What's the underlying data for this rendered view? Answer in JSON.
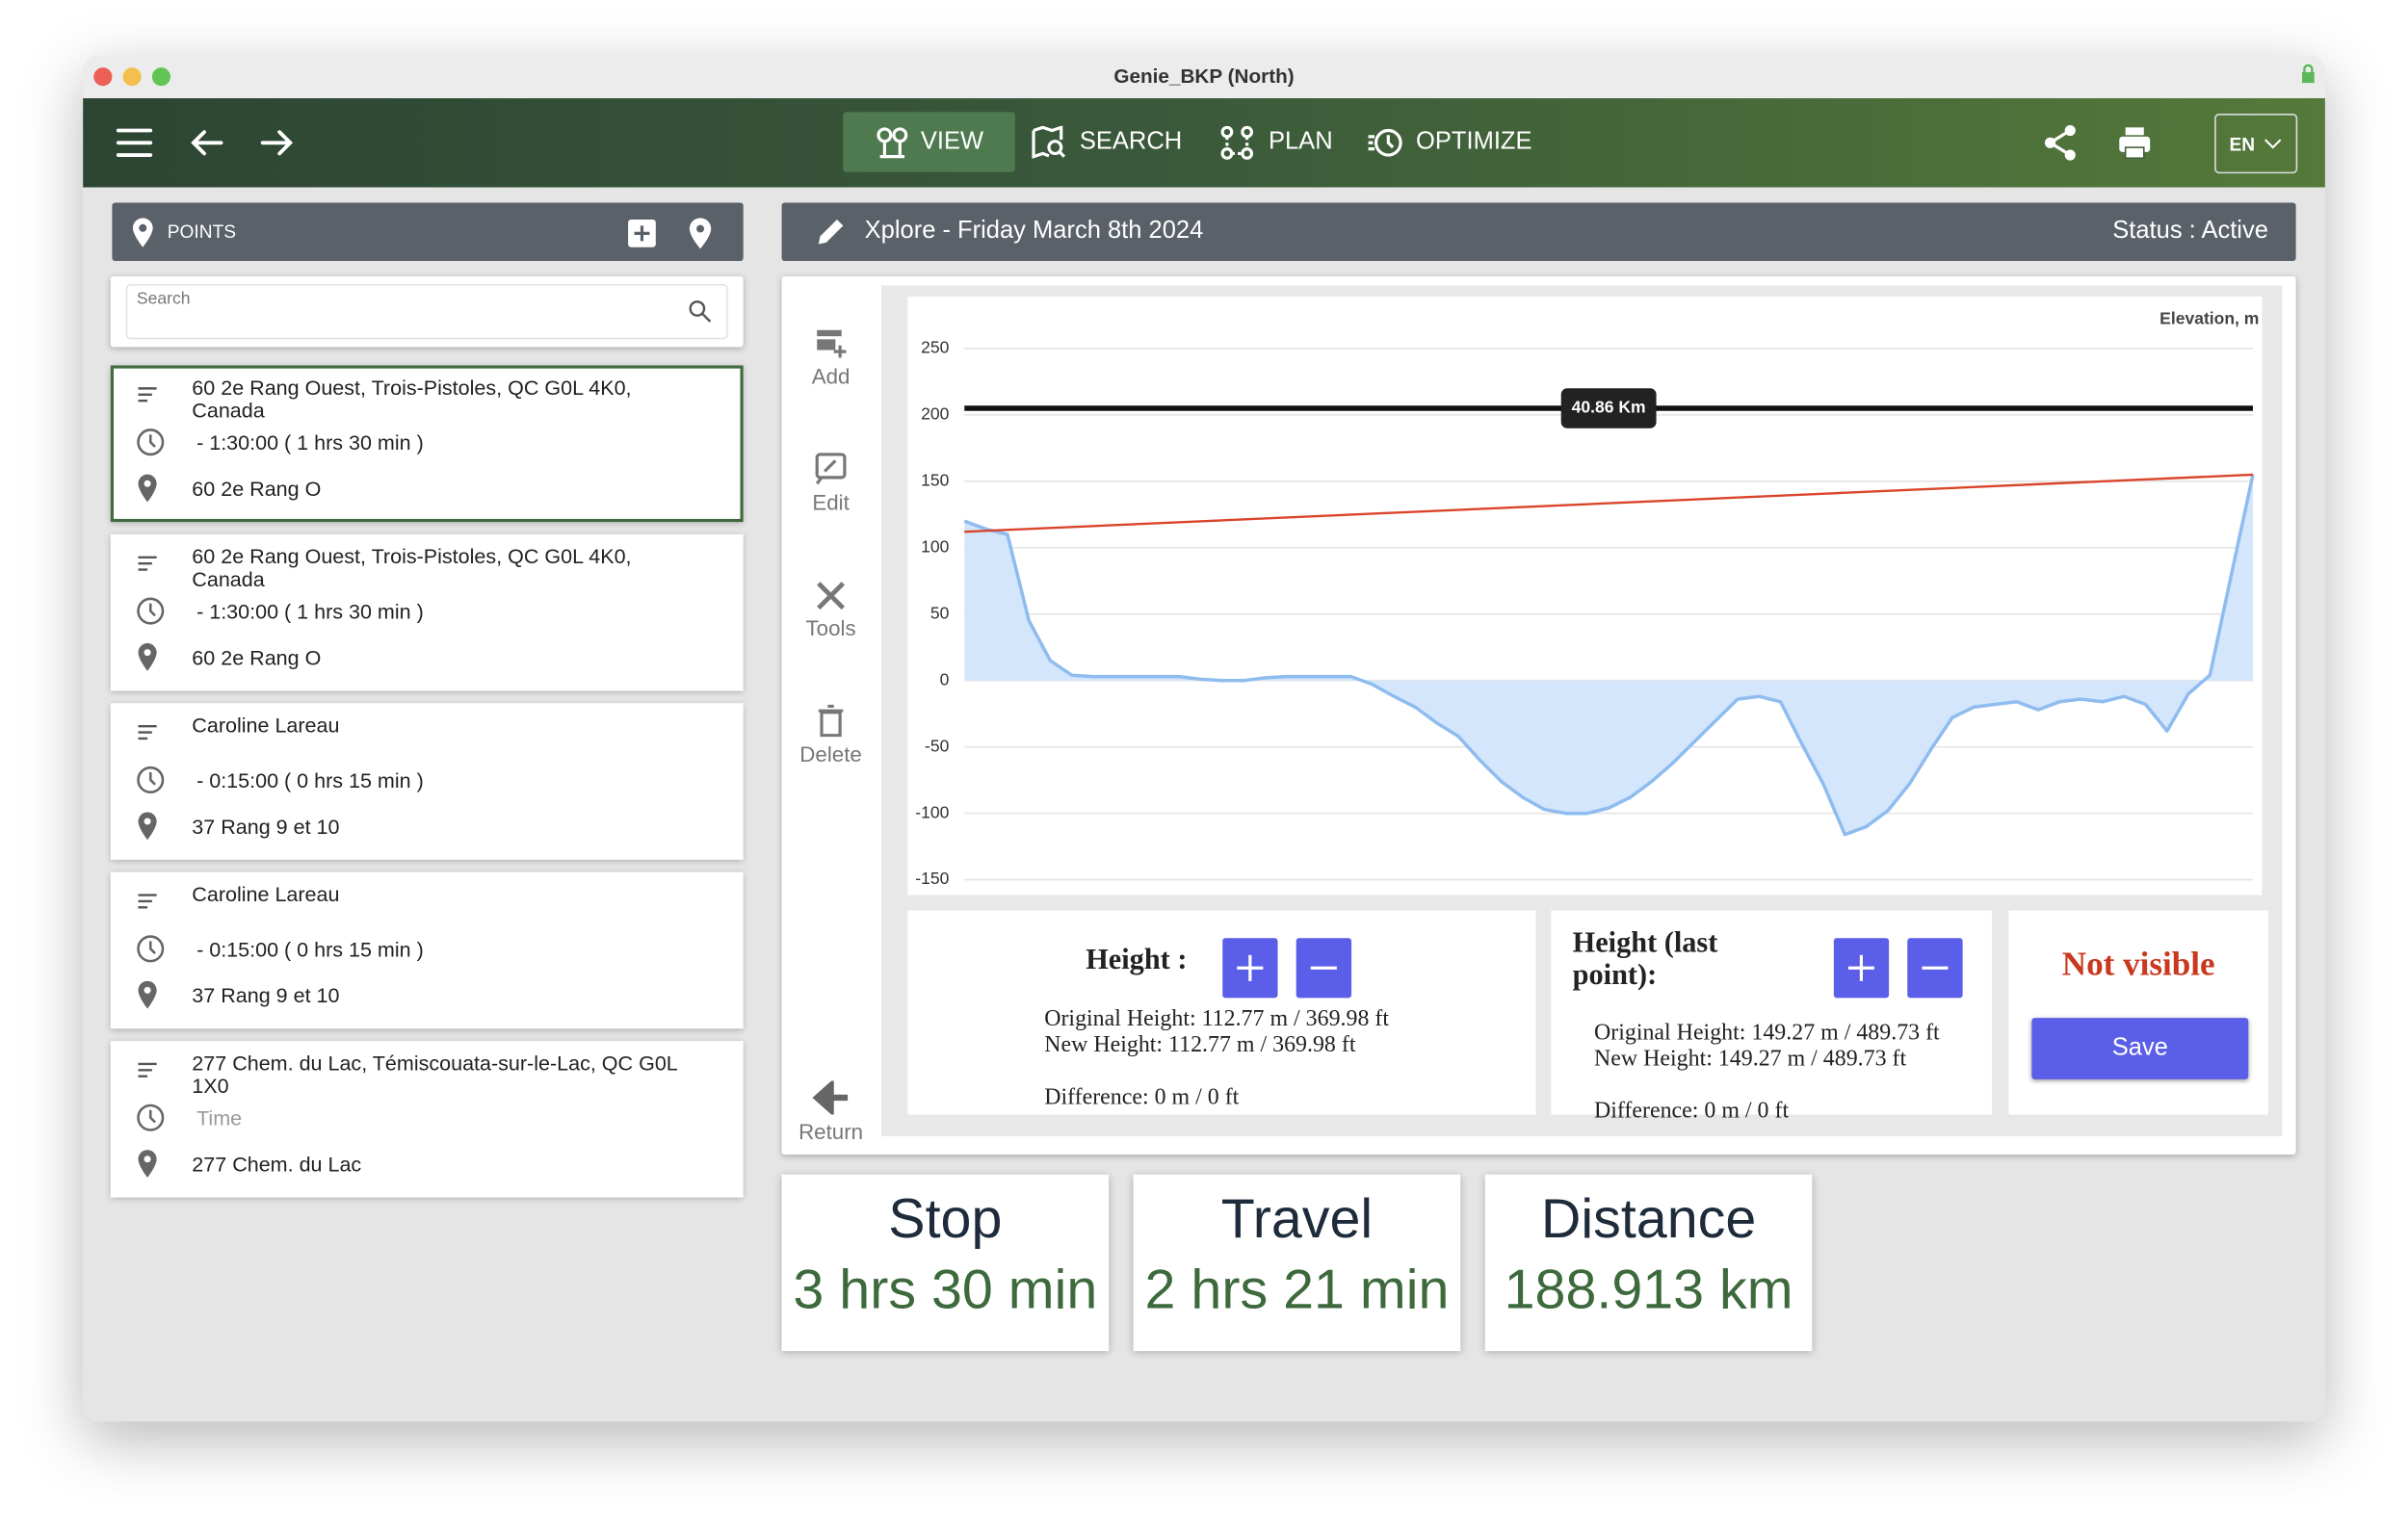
{
  "window_title": "Genie_BKP (North)",
  "toolbar": {
    "nav": [
      "VIEW",
      "SEARCH",
      "PLAN",
      "OPTIMIZE"
    ],
    "language": "EN"
  },
  "points_panel": {
    "title": "POINTS",
    "search_placeholder": "Search",
    "items": [
      {
        "title": "60 2e Rang Ouest, Trois-Pistoles, QC G0L 4K0, Canada",
        "time": "- 1:30:00 ( 1 hrs 30 min )",
        "address": "60 2e Rang O"
      },
      {
        "title": "60 2e Rang Ouest, Trois-Pistoles, QC G0L 4K0, Canada",
        "time": "- 1:30:00 ( 1 hrs 30 min )",
        "address": "60 2e Rang O"
      },
      {
        "title": "Caroline Lareau",
        "time": "- 0:15:00 ( 0 hrs 15 min )",
        "address": "37 Rang 9 et 10"
      },
      {
        "title": "Caroline Lareau",
        "time": "- 0:15:00 ( 0 hrs 15 min )",
        "address": "37 Rang 9 et 10"
      },
      {
        "title": "277 Chem. du Lac, Témiscouata-sur-le-Lac, QC G0L 1X0",
        "time": "Time",
        "address": "277 Chem. du Lac"
      }
    ]
  },
  "trip": {
    "title": "Xplore - Friday March 8th 2024",
    "status": "Status : Active"
  },
  "side_tools": [
    "Add",
    "Edit",
    "Tools",
    "Delete",
    "Return"
  ],
  "chart_data": {
    "type": "area",
    "y_label": "Elevation, m",
    "ylim": [
      -150,
      250
    ],
    "yticks": [
      250,
      200,
      150,
      100,
      50,
      0,
      -50,
      -100,
      -150
    ],
    "grid": true,
    "profile": {
      "color": "#8fbcef",
      "fill": "#d3e6fb",
      "values": [
        120,
        114,
        110,
        45,
        15,
        4,
        3,
        3,
        3,
        3,
        3,
        1,
        0,
        0,
        2,
        3,
        3,
        3,
        3,
        -3,
        -12,
        -20,
        -32,
        -42,
        -60,
        -76,
        -88,
        -97,
        -100,
        -100,
        -96,
        -88,
        -76,
        -62,
        -46,
        -30,
        -14,
        -12,
        -16,
        -48,
        -78,
        -116,
        -110,
        -98,
        -78,
        -52,
        -28,
        -20,
        -18,
        -16,
        -22,
        -16,
        -14,
        -16,
        -12,
        -18,
        -38,
        -10,
        4,
        80,
        155
      ]
    },
    "slope_line": {
      "color": "#d9452b",
      "values": [
        112,
        155
      ]
    },
    "marker_line": 205,
    "marker_label": "40.86 Km"
  },
  "height": {
    "label": "Height :",
    "original": "Original Height: 112.77 m / 369.98 ft",
    "new": "New Height: 112.77 m / 369.98 ft",
    "difference": "Difference: 0 m / 0 ft"
  },
  "height_last": {
    "label": "Height (last point):",
    "original": "Original Height: 149.27 m / 489.73 ft",
    "new": "New Height: 149.27 m / 489.73 ft",
    "difference": "Difference: 0 m / 0 ft"
  },
  "visibility": "Not visible",
  "save": "Save",
  "stats": [
    {
      "label": "Stop",
      "value": "3 hrs 30 min"
    },
    {
      "label": "Travel",
      "value": "2 hrs 21 min"
    },
    {
      "label": "Distance",
      "value": "188.913 km"
    }
  ]
}
